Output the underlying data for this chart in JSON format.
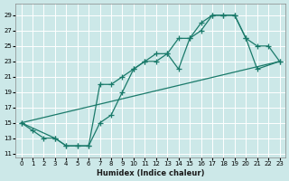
{
  "xlabel": "Humidex (Indice chaleur)",
  "bg_color": "#cce8e8",
  "grid_color": "#ffffff",
  "line_color": "#1a7a6a",
  "xlim": [
    -0.5,
    23.5
  ],
  "ylim": [
    10.5,
    30.5
  ],
  "xticks": [
    0,
    1,
    2,
    3,
    4,
    5,
    6,
    7,
    8,
    9,
    10,
    11,
    12,
    13,
    14,
    15,
    16,
    17,
    18,
    19,
    20,
    21,
    22,
    23
  ],
  "yticks": [
    11,
    13,
    15,
    17,
    19,
    21,
    23,
    25,
    27,
    29
  ],
  "series1_x": [
    0,
    1,
    2,
    3,
    4,
    5,
    6,
    7,
    8,
    9,
    10,
    11,
    12,
    13,
    14,
    15,
    16,
    17,
    18,
    19,
    20,
    21,
    23
  ],
  "series1_y": [
    15,
    14,
    13,
    13,
    12,
    12,
    12,
    20,
    20,
    21,
    22,
    23,
    23,
    24,
    26,
    26,
    28,
    29,
    29,
    29,
    26,
    22,
    23
  ],
  "series2_x": [
    0,
    3,
    4,
    5,
    6,
    7,
    8,
    9,
    10,
    11,
    12,
    13,
    14,
    15,
    16,
    17,
    18,
    19,
    20,
    21,
    22,
    23
  ],
  "series2_y": [
    15,
    13,
    12,
    12,
    12,
    15,
    16,
    19,
    22,
    23,
    24,
    24,
    22,
    26,
    27,
    29,
    29,
    29,
    26,
    25,
    25,
    23
  ],
  "series3_x": [
    0,
    23
  ],
  "series3_y": [
    15,
    23
  ]
}
